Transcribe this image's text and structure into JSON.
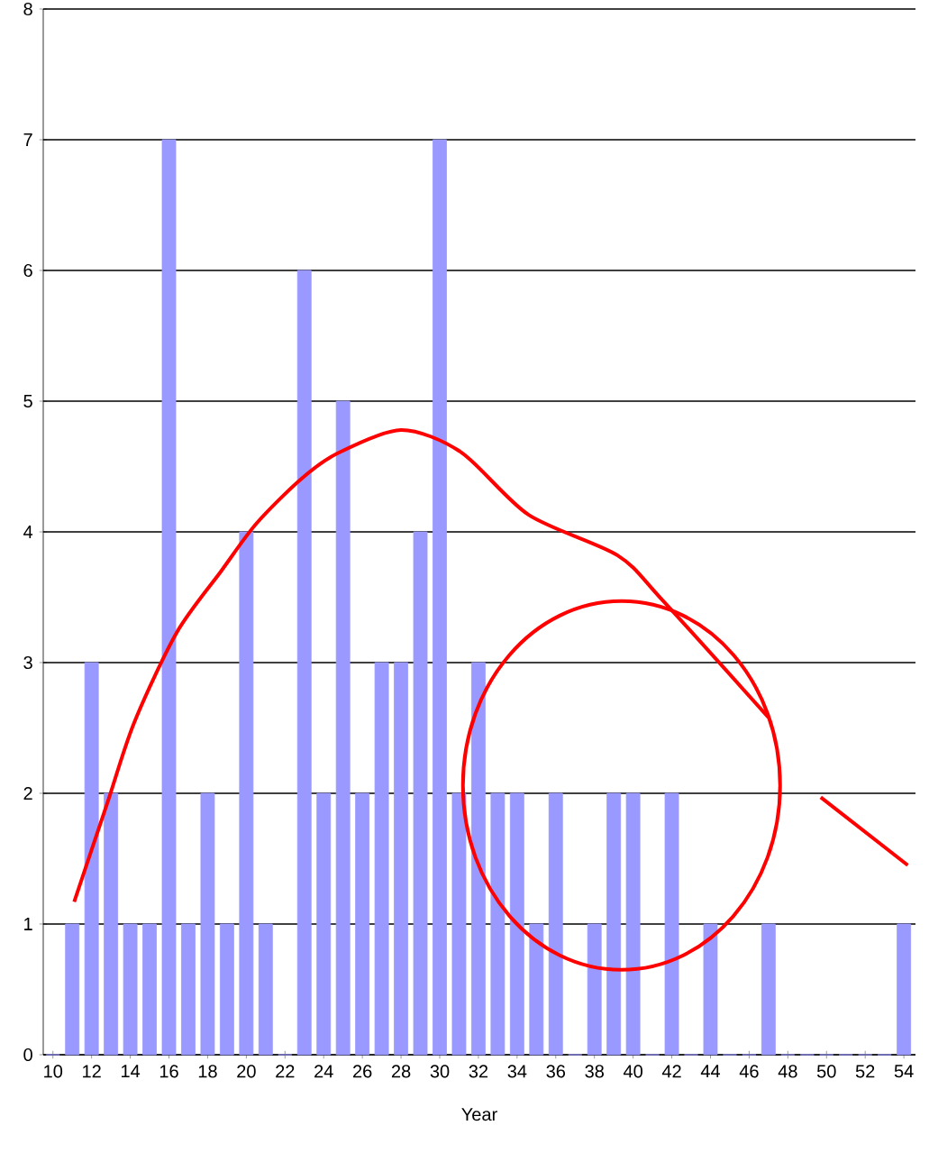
{
  "chart_data": {
    "type": "bar",
    "xlabel": "Year",
    "x": [
      10,
      11,
      12,
      13,
      14,
      15,
      16,
      17,
      18,
      19,
      20,
      21,
      22,
      23,
      24,
      25,
      26,
      27,
      28,
      29,
      30,
      31,
      32,
      33,
      34,
      35,
      36,
      37,
      38,
      39,
      40,
      41,
      42,
      43,
      44,
      45,
      46,
      47,
      48,
      49,
      50,
      51,
      52,
      53,
      54
    ],
    "xlim": [
      9.5,
      54.6
    ],
    "xticks": [
      10,
      12,
      14,
      16,
      18,
      20,
      22,
      24,
      26,
      28,
      30,
      32,
      34,
      36,
      38,
      40,
      42,
      44,
      46,
      48,
      50,
      52,
      54
    ],
    "ylim": [
      0,
      8
    ],
    "yticks": [
      0,
      1,
      2,
      3,
      4,
      5,
      6,
      7,
      8
    ],
    "grid": "y",
    "series": [
      {
        "color": "#9999ff",
        "values": [
          0,
          1,
          3,
          2,
          1,
          1,
          7,
          1,
          2,
          1,
          4,
          1,
          0,
          6,
          2,
          5,
          2,
          3,
          3,
          4,
          7,
          2,
          3,
          2,
          2,
          1,
          2,
          0,
          1,
          2,
          2,
          0,
          2,
          0,
          1,
          0,
          0,
          1,
          0,
          0,
          0,
          0,
          0,
          0,
          1
        ]
      },
      {
        "type": "line",
        "color": "#ff0000",
        "x": [
          11.1,
          12.8,
          14.2,
          16.4,
          18.7,
          20.5,
          22.8,
          24.7,
          28,
          31.1,
          34.6,
          39.2,
          41.5,
          47,
          49.6,
          49.7,
          54.2
        ],
        "values": [
          1.17,
          1.92,
          2.54,
          3.23,
          3.7,
          4.06,
          4.4,
          4.6,
          4.78,
          4.61,
          4.13,
          3.82,
          3.48,
          2.58,
          null,
          1.97,
          1.45
        ]
      }
    ]
  }
}
